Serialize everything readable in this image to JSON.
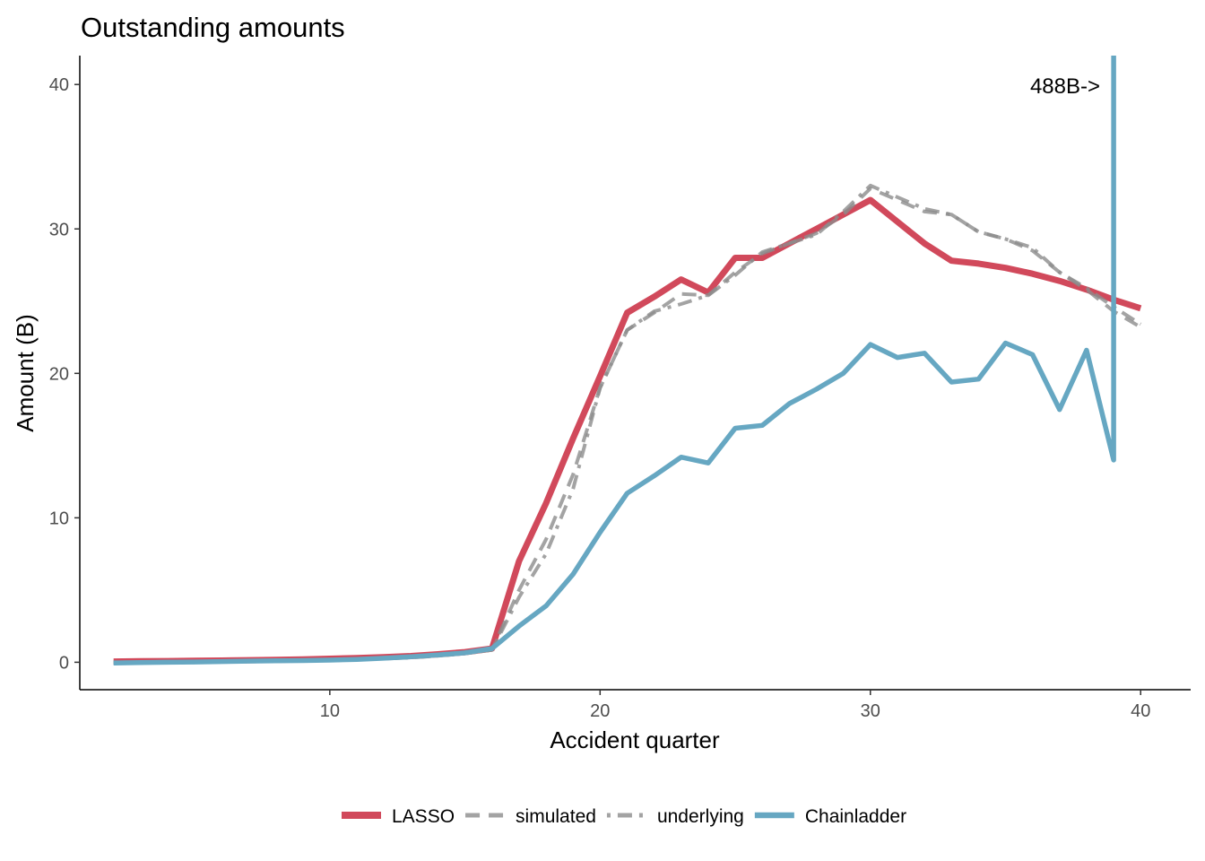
{
  "chart_data": {
    "type": "line",
    "title": "Outstanding amounts",
    "xlabel": "Accident quarter",
    "ylabel": "Amount (B)",
    "xlim": [
      0.75,
      41.85
    ],
    "ylim": [
      -1.9,
      42
    ],
    "x_ticks": [
      10,
      20,
      30,
      40
    ],
    "y_ticks": [
      0,
      10,
      20,
      30,
      40
    ],
    "grid": false,
    "legend_position": "bottom",
    "annotation": {
      "text": "488B->",
      "x": 38.5,
      "y": 40
    },
    "series": [
      {
        "name": "LASSO",
        "color": "#d1495b",
        "dash": "solid",
        "x": [
          2,
          3,
          4,
          5,
          6,
          7,
          8,
          9,
          10,
          11,
          12,
          13,
          14,
          15,
          16,
          17,
          18,
          19,
          20,
          21,
          22,
          23,
          24,
          25,
          26,
          27,
          28,
          29,
          30,
          31,
          32,
          33,
          34,
          35,
          36,
          37,
          38,
          39,
          40
        ],
        "values": [
          0.05,
          0.07,
          0.08,
          0.1,
          0.12,
          0.14,
          0.17,
          0.2,
          0.24,
          0.29,
          0.35,
          0.43,
          0.55,
          0.7,
          0.95,
          7.0,
          11.0,
          15.5,
          19.8,
          24.2,
          25.3,
          26.5,
          25.6,
          28.0,
          28.0,
          29.0,
          30.0,
          31.0,
          32.0,
          30.5,
          29.0,
          27.8,
          27.6,
          27.3,
          26.9,
          26.4,
          25.8,
          25.1,
          24.5
        ]
      },
      {
        "name": "simulated",
        "color": "#8c8c8c",
        "dash": "dashed",
        "x": [
          2,
          3,
          4,
          5,
          6,
          7,
          8,
          9,
          10,
          11,
          12,
          13,
          14,
          15,
          16,
          17,
          18,
          19,
          20,
          21,
          22,
          23,
          24,
          25,
          26,
          27,
          28,
          29,
          30,
          31,
          32,
          33,
          34,
          35,
          36,
          37,
          38,
          39,
          40
        ],
        "values": [
          0.0,
          0.0,
          0.05,
          0.05,
          0.05,
          0.08,
          0.1,
          0.12,
          0.15,
          0.2,
          0.25,
          0.32,
          0.45,
          0.6,
          0.85,
          5.0,
          8.5,
          13.0,
          19.0,
          23.0,
          24.2,
          25.5,
          25.4,
          27.0,
          28.3,
          29.0,
          29.7,
          31.0,
          32.8,
          32.0,
          31.2,
          31.0,
          29.8,
          29.3,
          28.5,
          27.0,
          25.8,
          24.3,
          23.2
        ]
      },
      {
        "name": "underlying",
        "color": "#8c8c8c",
        "dash": "dotdash",
        "x": [
          2,
          3,
          4,
          5,
          6,
          7,
          8,
          9,
          10,
          11,
          12,
          13,
          14,
          15,
          16,
          17,
          18,
          19,
          20,
          21,
          22,
          23,
          24,
          25,
          26,
          27,
          28,
          29,
          30,
          31,
          32,
          33,
          34,
          35,
          36,
          37,
          38,
          39,
          40
        ],
        "values": [
          0.0,
          0.0,
          0.05,
          0.05,
          0.05,
          0.08,
          0.1,
          0.12,
          0.15,
          0.2,
          0.25,
          0.32,
          0.45,
          0.6,
          0.85,
          4.5,
          7.5,
          12.0,
          19.0,
          23.0,
          24.3,
          24.8,
          25.4,
          26.8,
          28.4,
          29.0,
          29.6,
          31.2,
          33.0,
          32.2,
          31.4,
          31.0,
          29.8,
          29.3,
          28.7,
          27.0,
          25.9,
          24.6,
          23.4
        ]
      },
      {
        "name": "Chainladder",
        "color": "#66a7c2",
        "dash": "solid",
        "x": [
          2,
          3,
          4,
          5,
          6,
          7,
          8,
          9,
          10,
          11,
          12,
          13,
          14,
          15,
          16,
          17,
          18,
          19,
          20,
          21,
          22,
          23,
          24,
          25,
          26,
          27,
          28,
          29,
          30,
          31,
          32,
          33,
          34,
          35,
          36,
          37,
          38,
          39,
          39,
          39,
          39
        ],
        "values": [
          -0.05,
          -0.02,
          0.0,
          0.02,
          0.05,
          0.08,
          0.1,
          0.12,
          0.15,
          0.2,
          0.28,
          0.38,
          0.5,
          0.65,
          0.95,
          2.5,
          3.9,
          6.1,
          9.0,
          11.7,
          12.9,
          14.2,
          13.8,
          16.2,
          16.4,
          17.9,
          18.9,
          20.0,
          22.0,
          21.1,
          21.4,
          19.4,
          19.6,
          22.1,
          21.3,
          17.5,
          21.6,
          14.0,
          30.0,
          42.0,
          42.0
        ]
      }
    ]
  }
}
